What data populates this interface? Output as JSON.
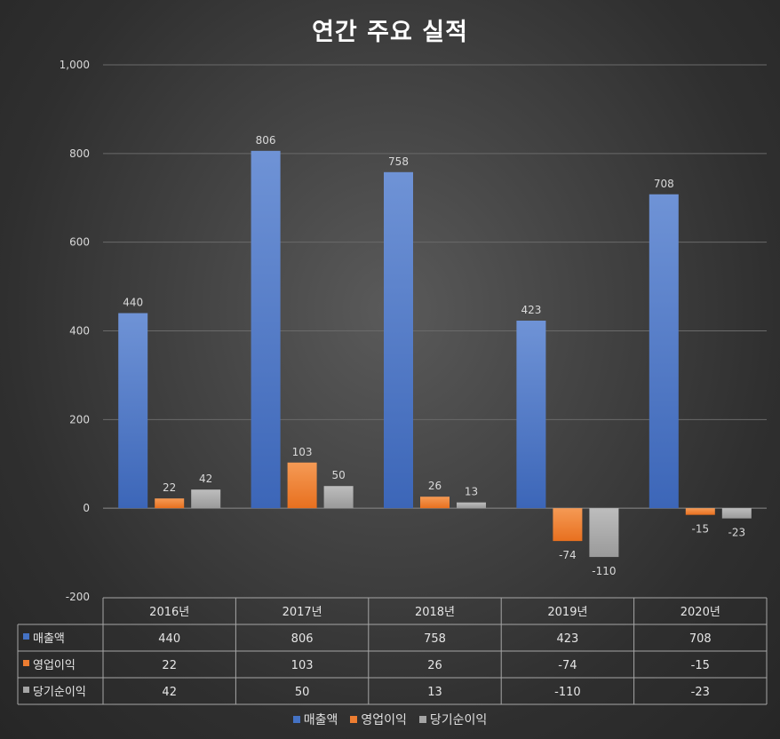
{
  "chart_data": {
    "type": "bar",
    "title": "연간 주요 실적",
    "categories": [
      "2016년",
      "2017년",
      "2018년",
      "2019년",
      "2020년"
    ],
    "series": [
      {
        "name": "매출액",
        "values": [
          440,
          806,
          758,
          423,
          708
        ],
        "color": "#4472c4"
      },
      {
        "name": "영업이익",
        "values": [
          22,
          103,
          26,
          -74,
          -15
        ],
        "color": "#ed7d31"
      },
      {
        "name": "당기순이익",
        "values": [
          42,
          50,
          13,
          -110,
          -23
        ],
        "color": "#a5a5a5"
      }
    ],
    "yticks": [
      "-200",
      "0",
      "200",
      "400",
      "600",
      "800",
      "1,000"
    ],
    "ylim": [
      -200,
      1000
    ],
    "grid": true,
    "data_table": true,
    "legend_position": "bottom"
  }
}
